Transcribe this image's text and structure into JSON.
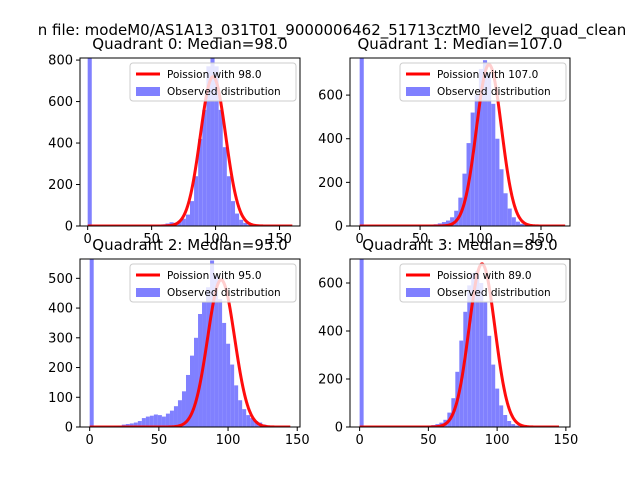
{
  "figure": {
    "suptitle": "n file: modeM0/AS1A13_031T01_9000006462_51713cztM0_level2_quad_clean"
  },
  "colors": {
    "observed": "#8080ff",
    "poisson": "#ff0000",
    "axes": "#000000",
    "background": "#ffffff"
  },
  "chart_data": [
    {
      "type": "bar",
      "title": "Quadrant 0: Median=98.0",
      "xlim": [
        -6,
        166
      ],
      "ylim": [
        0,
        810
      ],
      "xticks": [
        0,
        50,
        100,
        150
      ],
      "yticks": [
        0,
        200,
        400,
        600,
        800
      ],
      "median": 98.0,
      "legend_position": "top-right",
      "legend": {
        "poisson": "Poission with 98.0",
        "observed": "Observed distribution"
      },
      "hist": {
        "bin_start": 0,
        "bin_width": 3.2,
        "counts": [
          810,
          0,
          0,
          0,
          0,
          0,
          0,
          0,
          0,
          0,
          0,
          1,
          1,
          2,
          2,
          3,
          5,
          6,
          8,
          12,
          18,
          15,
          25,
          35,
          55,
          120,
          240,
          420,
          560,
          770,
          820,
          770,
          560,
          380,
          240,
          120,
          60,
          30,
          15,
          6,
          3,
          2,
          1,
          1,
          0,
          0,
          0,
          0,
          0,
          0
        ]
      },
      "poisson_curve_peak": 720
    },
    {
      "type": "bar",
      "title": "Quadrant 1: Median=107.0",
      "xlim": [
        -8,
        174
      ],
      "ylim": [
        0,
        770
      ],
      "xticks": [
        0,
        50,
        100,
        150
      ],
      "yticks": [
        0,
        200,
        400,
        600
      ],
      "median": 107.0,
      "legend_position": "top-right",
      "legend": {
        "poisson": "Poission with 107.0",
        "observed": "Observed distribution"
      },
      "hist": {
        "bin_start": 0,
        "bin_width": 3.4,
        "counts": [
          770,
          0,
          0,
          0,
          0,
          0,
          0,
          0,
          0,
          0,
          0,
          0,
          0,
          1,
          2,
          3,
          4,
          6,
          8,
          12,
          18,
          25,
          40,
          70,
          130,
          240,
          380,
          520,
          600,
          720,
          760,
          700,
          560,
          400,
          260,
          150,
          80,
          40,
          20,
          10,
          5,
          2,
          1,
          0,
          0,
          0,
          0,
          0,
          0,
          0
        ]
      },
      "poisson_curve_peak": 740
    },
    {
      "type": "bar",
      "title": "Quadrant 2: Median=95.0",
      "xlim": [
        -7,
        152
      ],
      "ylim": [
        0,
        565
      ],
      "xticks": [
        0,
        50,
        100,
        150
      ],
      "yticks": [
        0,
        100,
        200,
        300,
        400,
        500
      ],
      "median": 95.0,
      "legend_position": "top-right",
      "legend": {
        "poisson": "Poission with 95.0",
        "observed": "Observed distribution"
      },
      "hist": {
        "bin_start": 0,
        "bin_width": 2.9,
        "counts": [
          565,
          0,
          0,
          0,
          0,
          0,
          3,
          5,
          8,
          10,
          12,
          15,
          20,
          30,
          35,
          38,
          42,
          40,
          35,
          45,
          55,
          70,
          90,
          120,
          175,
          240,
          300,
          380,
          420,
          470,
          560,
          510,
          430,
          350,
          280,
          210,
          140,
          90,
          60,
          40,
          30,
          20,
          15,
          8,
          5,
          3,
          2,
          1,
          0,
          0
        ]
      },
      "poisson_curve_peak": 495
    },
    {
      "type": "bar",
      "title": "Quadrant 3: Median=89.0",
      "xlim": [
        -7,
        153
      ],
      "ylim": [
        0,
        700
      ],
      "xticks": [
        0,
        50,
        100,
        150
      ],
      "yticks": [
        0,
        200,
        400,
        600
      ],
      "median": 89.0,
      "legend_position": "top-right",
      "legend": {
        "poisson": "Poission with 89.0",
        "observed": "Observed distribution"
      },
      "hist": {
        "bin_start": 0,
        "bin_width": 2.9,
        "counts": [
          700,
          0,
          0,
          0,
          0,
          0,
          0,
          0,
          0,
          0,
          0,
          0,
          0,
          1,
          2,
          3,
          4,
          6,
          8,
          12,
          18,
          30,
          60,
          120,
          230,
          360,
          480,
          590,
          640,
          650,
          600,
          520,
          380,
          260,
          160,
          90,
          50,
          25,
          12,
          6,
          3,
          2,
          1,
          0,
          0,
          0,
          0,
          0,
          0,
          0
        ]
      },
      "poisson_curve_peak": 680
    }
  ]
}
